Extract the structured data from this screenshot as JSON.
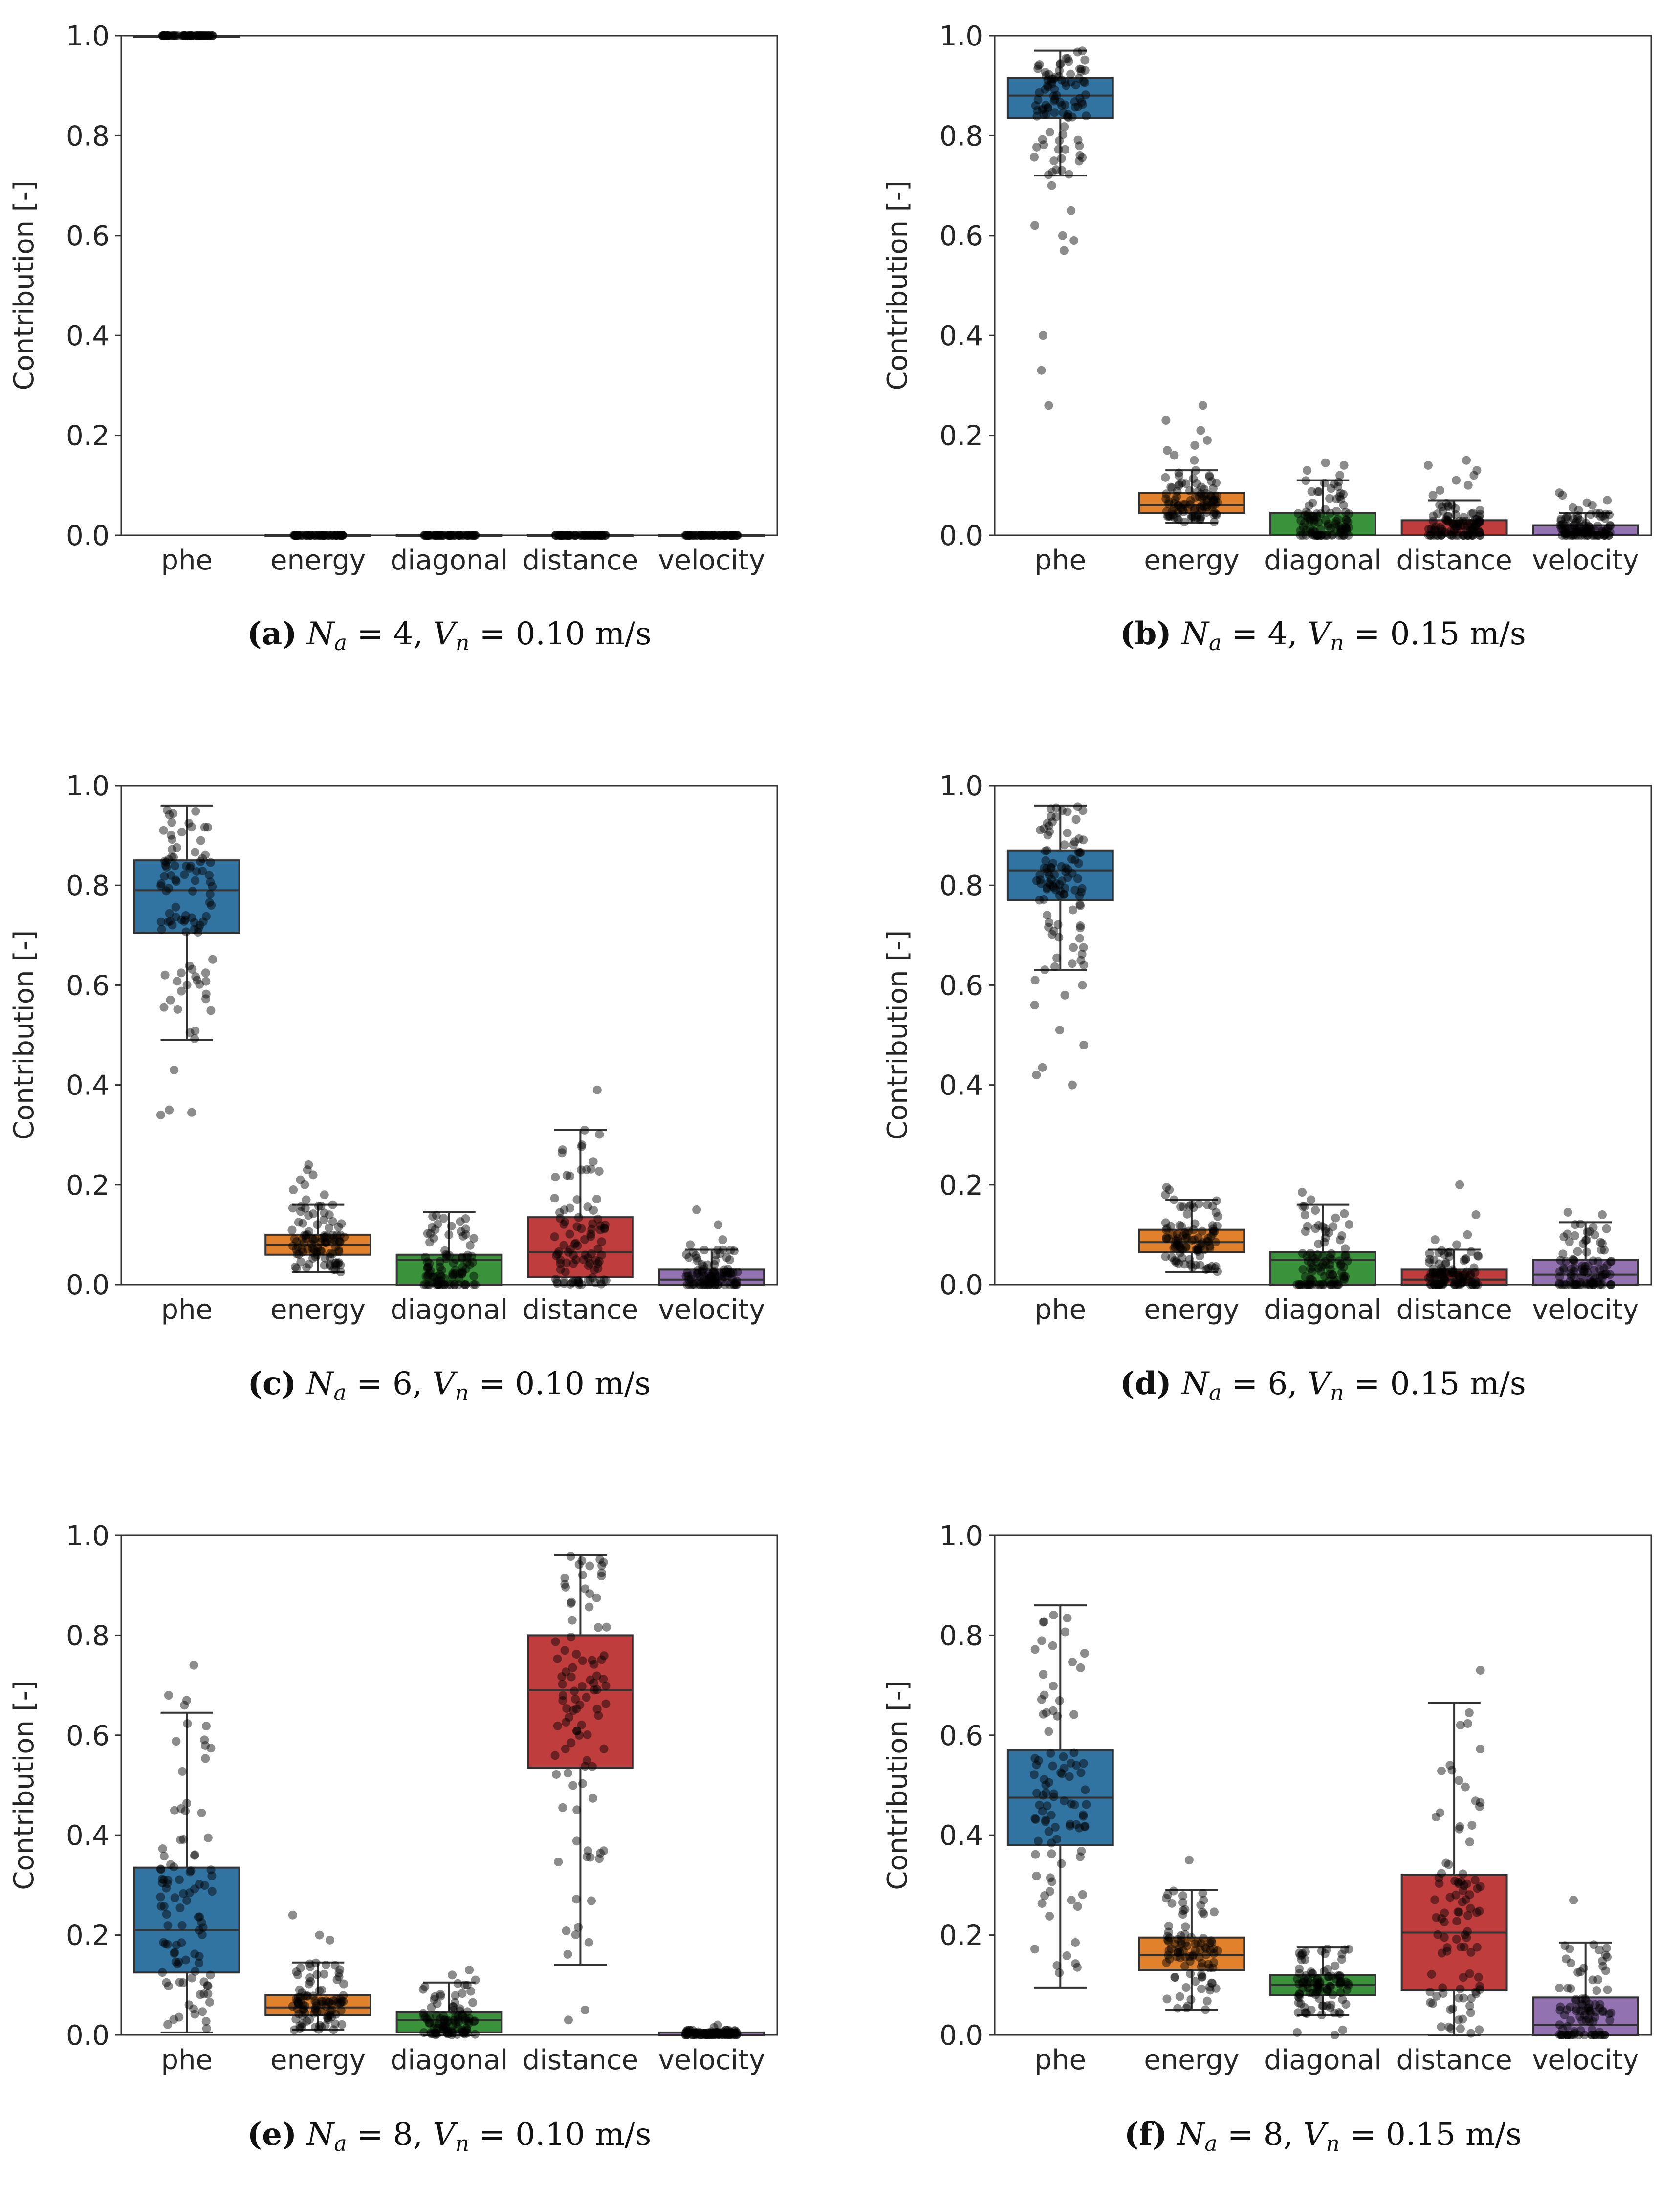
{
  "figure": {
    "ylabel": "Contribution [-]",
    "categories": [
      "phe",
      "energy",
      "diagonal",
      "distance",
      "velocity"
    ],
    "yticks": [
      "0.0",
      "0.2",
      "0.4",
      "0.6",
      "0.8",
      "1.0"
    ],
    "colors": {
      "phe": "#3274a1",
      "energy": "#e1812c",
      "diagonal": "#3a923a",
      "distance": "#c03d3e",
      "velocity": "#9372b2",
      "points": "#000000",
      "axis": "#333333"
    }
  },
  "chart_data": [
    {
      "id": "a",
      "type": "box",
      "ylim": [
        0,
        1
      ],
      "ylabel": "Contribution [-]",
      "caption": {
        "label": "(a)",
        "na": "4",
        "vn": "0.10",
        "unit": "m/s"
      },
      "categories": [
        "phe",
        "energy",
        "diagonal",
        "distance",
        "velocity"
      ],
      "boxes": [
        {
          "category": "phe",
          "q1": 1.0,
          "median": 1.0,
          "q3": 1.0,
          "whisker_low": 1.0,
          "whisker_high": 1.0
        },
        {
          "category": "energy",
          "q1": 0.0,
          "median": 0.0,
          "q3": 0.0,
          "whisker_low": 0.0,
          "whisker_high": 0.0
        },
        {
          "category": "diagonal",
          "q1": 0.0,
          "median": 0.0,
          "q3": 0.0,
          "whisker_low": 0.0,
          "whisker_high": 0.0
        },
        {
          "category": "distance",
          "q1": 0.0,
          "median": 0.0,
          "q3": 0.0,
          "whisker_low": 0.0,
          "whisker_high": 0.0
        },
        {
          "category": "velocity",
          "q1": 0.0,
          "median": 0.0,
          "q3": 0.0,
          "whisker_low": 0.0,
          "whisker_high": 0.0
        }
      ]
    },
    {
      "id": "b",
      "type": "box",
      "ylim": [
        0,
        1
      ],
      "ylabel": "Contribution [-]",
      "caption": {
        "label": "(b)",
        "na": "4",
        "vn": "0.15",
        "unit": "m/s"
      },
      "categories": [
        "phe",
        "energy",
        "diagonal",
        "distance",
        "velocity"
      ],
      "boxes": [
        {
          "category": "phe",
          "q1": 0.835,
          "median": 0.88,
          "q3": 0.915,
          "whisker_low": 0.72,
          "whisker_high": 0.97,
          "outliers": [
            0.26,
            0.33,
            0.4,
            0.57,
            0.59,
            0.6,
            0.62,
            0.65,
            0.7
          ]
        },
        {
          "category": "energy",
          "q1": 0.045,
          "median": 0.06,
          "q3": 0.085,
          "whisker_low": 0.025,
          "whisker_high": 0.13,
          "outliers": [
            0.15,
            0.16,
            0.17,
            0.18,
            0.19,
            0.21,
            0.23,
            0.26
          ]
        },
        {
          "category": "diagonal",
          "q1": 0.0,
          "median": 0.0,
          "q3": 0.045,
          "whisker_low": 0.0,
          "whisker_high": 0.11,
          "outliers": [
            0.12,
            0.13,
            0.14,
            0.145
          ]
        },
        {
          "category": "distance",
          "q1": 0.0,
          "median": 0.0,
          "q3": 0.03,
          "whisker_low": 0.0,
          "whisker_high": 0.07,
          "outliers": [
            0.08,
            0.09,
            0.1,
            0.11,
            0.12,
            0.13,
            0.14,
            0.15
          ]
        },
        {
          "category": "velocity",
          "q1": 0.0,
          "median": 0.0,
          "q3": 0.02,
          "whisker_low": 0.0,
          "whisker_high": 0.045,
          "outliers": [
            0.05,
            0.055,
            0.06,
            0.065,
            0.07,
            0.08,
            0.085
          ]
        }
      ]
    },
    {
      "id": "c",
      "type": "box",
      "ylim": [
        0,
        1
      ],
      "ylabel": "Contribution [-]",
      "caption": {
        "label": "(c)",
        "na": "6",
        "vn": "0.10",
        "unit": "m/s"
      },
      "categories": [
        "phe",
        "energy",
        "diagonal",
        "distance",
        "velocity"
      ],
      "boxes": [
        {
          "category": "phe",
          "q1": 0.705,
          "median": 0.79,
          "q3": 0.85,
          "whisker_low": 0.49,
          "whisker_high": 0.96,
          "outliers": [
            0.34,
            0.345,
            0.35,
            0.43
          ]
        },
        {
          "category": "energy",
          "q1": 0.06,
          "median": 0.08,
          "q3": 0.1,
          "whisker_low": 0.025,
          "whisker_high": 0.16,
          "outliers": [
            0.17,
            0.18,
            0.19,
            0.2,
            0.21,
            0.22,
            0.23,
            0.24
          ]
        },
        {
          "category": "diagonal",
          "q1": 0.0,
          "median": 0.05,
          "q3": 0.06,
          "whisker_low": 0.0,
          "whisker_high": 0.145,
          "outliers": []
        },
        {
          "category": "distance",
          "q1": 0.015,
          "median": 0.065,
          "q3": 0.135,
          "whisker_low": 0.0,
          "whisker_high": 0.31,
          "outliers": [
            0.39
          ]
        },
        {
          "category": "velocity",
          "q1": 0.0,
          "median": 0.01,
          "q3": 0.03,
          "whisker_low": 0.0,
          "whisker_high": 0.07,
          "outliers": [
            0.08,
            0.09,
            0.12,
            0.15
          ]
        }
      ]
    },
    {
      "id": "d",
      "type": "box",
      "ylim": [
        0,
        1
      ],
      "ylabel": "Contribution [-]",
      "caption": {
        "label": "(d)",
        "na": "6",
        "vn": "0.15",
        "unit": "m/s"
      },
      "categories": [
        "phe",
        "energy",
        "diagonal",
        "distance",
        "velocity"
      ],
      "boxes": [
        {
          "category": "phe",
          "q1": 0.77,
          "median": 0.83,
          "q3": 0.87,
          "whisker_low": 0.63,
          "whisker_high": 0.96,
          "outliers": [
            0.4,
            0.42,
            0.435,
            0.48,
            0.51,
            0.56,
            0.58,
            0.6,
            0.61
          ]
        },
        {
          "category": "energy",
          "q1": 0.065,
          "median": 0.085,
          "q3": 0.11,
          "whisker_low": 0.025,
          "whisker_high": 0.17,
          "outliers": [
            0.18,
            0.19,
            0.195
          ]
        },
        {
          "category": "diagonal",
          "q1": 0.0,
          "median": 0.05,
          "q3": 0.065,
          "whisker_low": 0.0,
          "whisker_high": 0.16,
          "outliers": [
            0.17,
            0.185
          ]
        },
        {
          "category": "distance",
          "q1": 0.0,
          "median": 0.01,
          "q3": 0.03,
          "whisker_low": 0.0,
          "whisker_high": 0.07,
          "outliers": [
            0.08,
            0.09,
            0.1,
            0.14,
            0.2
          ]
        },
        {
          "category": "velocity",
          "q1": 0.0,
          "median": 0.02,
          "q3": 0.05,
          "whisker_low": 0.0,
          "whisker_high": 0.125,
          "outliers": [
            0.14,
            0.145
          ]
        }
      ]
    },
    {
      "id": "e",
      "type": "box",
      "ylim": [
        0,
        1
      ],
      "ylabel": "Contribution [-]",
      "caption": {
        "label": "(e)",
        "na": "8",
        "vn": "0.10",
        "unit": "m/s"
      },
      "categories": [
        "phe",
        "energy",
        "diagonal",
        "distance",
        "velocity"
      ],
      "boxes": [
        {
          "category": "phe",
          "q1": 0.125,
          "median": 0.21,
          "q3": 0.335,
          "whisker_low": 0.005,
          "whisker_high": 0.645,
          "outliers": [
            0.66,
            0.67,
            0.68,
            0.74
          ]
        },
        {
          "category": "energy",
          "q1": 0.04,
          "median": 0.055,
          "q3": 0.08,
          "whisker_low": 0.01,
          "whisker_high": 0.145,
          "outliers": [
            0.19,
            0.2,
            0.24
          ]
        },
        {
          "category": "diagonal",
          "q1": 0.005,
          "median": 0.03,
          "q3": 0.045,
          "whisker_low": 0.0,
          "whisker_high": 0.105,
          "outliers": [
            0.11,
            0.12,
            0.13
          ]
        },
        {
          "category": "distance",
          "q1": 0.535,
          "median": 0.69,
          "q3": 0.8,
          "whisker_low": 0.14,
          "whisker_high": 0.96,
          "outliers": [
            0.03,
            0.05
          ]
        },
        {
          "category": "velocity",
          "q1": 0.0,
          "median": 0.0,
          "q3": 0.005,
          "whisker_low": 0.0,
          "whisker_high": 0.01,
          "outliers": [
            0.015,
            0.02
          ]
        }
      ]
    },
    {
      "id": "f",
      "type": "box",
      "ylim": [
        0,
        1
      ],
      "ylabel": "Contribution [-]",
      "caption": {
        "label": "(f)",
        "na": "8",
        "vn": "0.15",
        "unit": "m/s"
      },
      "categories": [
        "phe",
        "energy",
        "diagonal",
        "distance",
        "velocity"
      ],
      "boxes": [
        {
          "category": "phe",
          "q1": 0.38,
          "median": 0.475,
          "q3": 0.57,
          "whisker_low": 0.095,
          "whisker_high": 0.86,
          "outliers": []
        },
        {
          "category": "energy",
          "q1": 0.13,
          "median": 0.16,
          "q3": 0.195,
          "whisker_low": 0.05,
          "whisker_high": 0.29,
          "outliers": [
            0.35
          ]
        },
        {
          "category": "diagonal",
          "q1": 0.08,
          "median": 0.1,
          "q3": 0.12,
          "whisker_low": 0.04,
          "whisker_high": 0.175,
          "outliers": [
            0.0,
            0.005,
            0.01
          ]
        },
        {
          "category": "distance",
          "q1": 0.09,
          "median": 0.205,
          "q3": 0.32,
          "whisker_low": 0.0,
          "whisker_high": 0.665,
          "outliers": [
            0.73
          ]
        },
        {
          "category": "velocity",
          "q1": 0.0,
          "median": 0.02,
          "q3": 0.075,
          "whisker_low": 0.0,
          "whisker_high": 0.185,
          "outliers": [
            0.27
          ]
        }
      ]
    }
  ]
}
